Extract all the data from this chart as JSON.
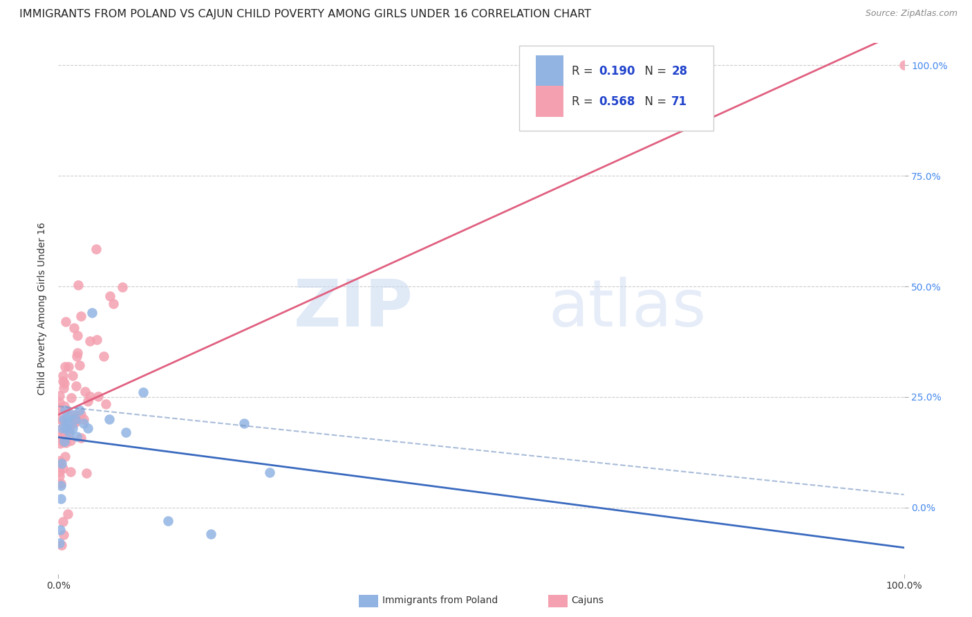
{
  "title": "IMMIGRANTS FROM POLAND VS CAJUN CHILD POVERTY AMONG GIRLS UNDER 16 CORRELATION CHART",
  "source": "Source: ZipAtlas.com",
  "ylabel": "Child Poverty Among Girls Under 16",
  "watermark_zip": "ZIP",
  "watermark_atlas": "atlas",
  "poland_color": "#92b4e3",
  "cajun_color": "#f4a0b0",
  "poland_line_color": "#3a6abf",
  "cajun_line_color": "#e06080",
  "poland_dash_color": "#7090c0",
  "poland_R": 0.19,
  "poland_N": 28,
  "cajun_R": 0.568,
  "cajun_N": 71,
  "background_color": "#ffffff",
  "grid_color": "#cccccc",
  "title_color": "#222222",
  "source_color": "#888888",
  "tick_color": "#4488ee",
  "legend_text_color": "#333333",
  "legend_value_color": "#2244cc",
  "title_fontsize": 11.5,
  "axis_label_fontsize": 10,
  "tick_fontsize": 10,
  "legend_fontsize": 12
}
